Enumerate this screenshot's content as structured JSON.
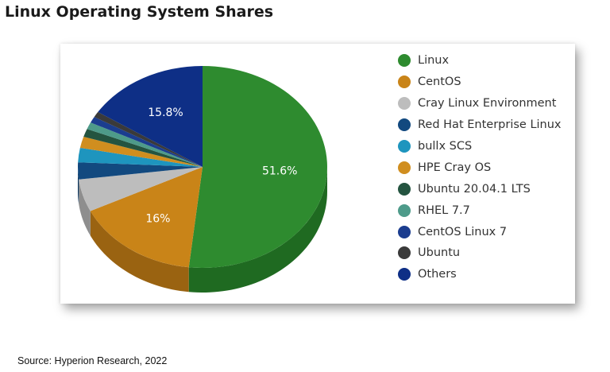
{
  "page": {
    "title": "Linux Operating System Shares",
    "source": "Source: Hyperion Research, 2022"
  },
  "chart_data": {
    "type": "pie",
    "title": "Linux Operating System Shares",
    "legend_position": "right",
    "start_angle_deg": 0,
    "direction": "clockwise",
    "slices": [
      {
        "name": "Linux",
        "value": 51.6,
        "label": "51.6%",
        "color": "#2E8B2F",
        "side_color": "#1F6A21"
      },
      {
        "name": "CentOS",
        "value": 16,
        "label": "16%",
        "color": "#C98418",
        "side_color": "#9A6311"
      },
      {
        "name": "Cray Linux Environment",
        "value": 5.2,
        "label": "",
        "color": "#BDBDBD",
        "side_color": "#8E8E8E"
      },
      {
        "name": "Red Hat Enterprise Linux",
        "value": 2.7,
        "label": "",
        "color": "#12497F",
        "side_color": "#0C355D"
      },
      {
        "name": "bullx SCS",
        "value": 2.3,
        "label": "",
        "color": "#1E95BE",
        "side_color": "#156F8E"
      },
      {
        "name": "HPE Cray OS",
        "value": 1.8,
        "label": "",
        "color": "#D08E1F",
        "side_color": "#9C6B17"
      },
      {
        "name": "Ubuntu 20.04.1 LTS",
        "value": 1.3,
        "label": "",
        "color": "#245440",
        "side_color": "#183A2C"
      },
      {
        "name": "RHEL 7.7",
        "value": 1.1,
        "label": "",
        "color": "#4E9B8A",
        "side_color": "#377267"
      },
      {
        "name": "CentOS Linux 7",
        "value": 1.0,
        "label": "",
        "color": "#1B3D8F",
        "side_color": "#132C68"
      },
      {
        "name": "Ubuntu",
        "value": 0.9,
        "label": "",
        "color": "#3A3A3A",
        "side_color": "#262626"
      },
      {
        "name": "Others",
        "value": 15.8,
        "label": "15.8%",
        "color": "#0E2F86",
        "side_color": "#0A2262"
      }
    ]
  }
}
